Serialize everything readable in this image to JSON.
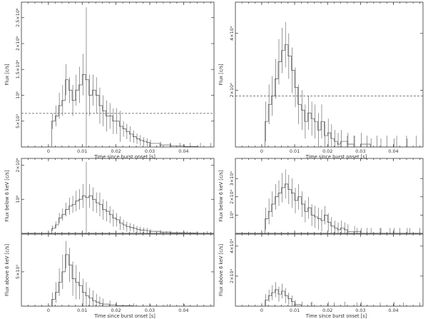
{
  "chart_data": [
    {
      "type": "line",
      "name": "top-left",
      "xlabel": "Time since burst onset [s]",
      "ylabel": "Flux [c/s]",
      "xticks": [
        "0",
        "0.01",
        "0.02",
        "0.03",
        "0.04"
      ],
      "xtick_values": [
        0,
        0.01,
        0.02,
        0.03,
        0.04
      ],
      "yticks": [
        "5×10⁵",
        "10⁶",
        "1.5×10⁶",
        "2×10⁶",
        "2.5×10⁶"
      ],
      "ytick_values": [
        500000,
        1000000,
        1500000,
        2000000,
        2500000
      ],
      "xlim": [
        -0.008,
        0.049
      ],
      "ylim": [
        0,
        2800000
      ],
      "dashed_level": 650000,
      "x": [
        -0.008,
        0,
        0.001,
        0.002,
        0.003,
        0.004,
        0.005,
        0.006,
        0.007,
        0.008,
        0.009,
        0.01,
        0.011,
        0.012,
        0.013,
        0.014,
        0.015,
        0.016,
        0.017,
        0.018,
        0.019,
        0.02,
        0.021,
        0.022,
        0.023,
        0.024,
        0.025,
        0.026,
        0.027,
        0.028,
        0.029,
        0.03,
        0.033,
        0.036,
        0.04,
        0.044,
        0.049
      ],
      "y": [
        0,
        0,
        500000,
        600000,
        800000,
        900000,
        1300000,
        1100000,
        900000,
        1100000,
        1200000,
        1400000,
        1300000,
        1000000,
        1100000,
        1000000,
        800000,
        700000,
        600000,
        600000,
        500000,
        500000,
        400000,
        350000,
        300000,
        250000,
        200000,
        160000,
        130000,
        110000,
        90000,
        70000,
        40000,
        20000,
        10000,
        0,
        0
      ],
      "err": [
        0,
        0,
        150000,
        200000,
        250000,
        300000,
        300000,
        250000,
        300000,
        300000,
        350000,
        400000,
        1400000,
        400000,
        300000,
        350000,
        350000,
        300000,
        300000,
        250000,
        250000,
        250000,
        300000,
        150000,
        150000,
        150000,
        120000,
        100000,
        100000,
        80000,
        80000,
        70000,
        60000,
        50000,
        40000,
        30000,
        0
      ],
      "err_x": [
        0.03,
        0.033,
        0.036,
        0.039,
        0.042,
        0.045,
        0.048
      ],
      "err_h": [
        80000,
        80000,
        80000,
        80000,
        80000,
        80000,
        80000
      ]
    },
    {
      "type": "line",
      "name": "top-right",
      "xlabel": "Time since burst onset [s]",
      "ylabel": "Flux [c/s]",
      "xticks": [
        "0",
        "0.01",
        "0.02",
        "0.03",
        "0.04"
      ],
      "xtick_values": [
        0,
        0.01,
        0.02,
        0.03,
        0.04
      ],
      "yticks": [
        "2×10⁴",
        "4×10⁴"
      ],
      "ytick_values": [
        20000,
        40000
      ],
      "xlim": [
        -0.008,
        0.049
      ],
      "ylim": [
        0,
        51000
      ],
      "dashed_level": 18000,
      "x": [
        -0.008,
        0,
        0.001,
        0.002,
        0.003,
        0.004,
        0.005,
        0.006,
        0.007,
        0.008,
        0.009,
        0.01,
        0.011,
        0.012,
        0.013,
        0.014,
        0.015,
        0.016,
        0.017,
        0.018,
        0.019,
        0.02,
        0.021,
        0.022,
        0.023,
        0.024,
        0.026,
        0.028,
        0.03,
        0.033,
        0.036,
        0.04,
        0.044,
        0.049
      ],
      "y": [
        0,
        0,
        9000,
        15000,
        18000,
        24000,
        30000,
        34000,
        36000,
        32000,
        27000,
        21000,
        15000,
        13000,
        9000,
        12000,
        10000,
        9000,
        6000,
        9000,
        4000,
        5000,
        3000,
        2000,
        1000,
        2000,
        1000,
        0,
        1000,
        0,
        0,
        0,
        0,
        0
      ],
      "err": [
        0,
        0,
        7000,
        7000,
        7000,
        7000,
        8000,
        8000,
        8000,
        8000,
        8000,
        7000,
        7000,
        7000,
        6000,
        6000,
        6000,
        6000,
        6000,
        6000,
        5000,
        5000,
        5000,
        4000,
        4000,
        4000,
        4000,
        4000,
        4000,
        3000,
        3000,
        3000,
        3000,
        0
      ],
      "err_x": [
        0.026,
        0.028,
        0.032,
        0.035,
        0.038,
        0.041,
        0.044,
        0.047,
        0.049
      ],
      "err_h": [
        4000,
        4000,
        4000,
        4000,
        4000,
        4000,
        4000,
        4000,
        4000
      ]
    },
    {
      "type": "line",
      "name": "left-below-6keV",
      "xlabel": "",
      "ylabel": "Flux below 6 keV [c/s]",
      "xticks": [],
      "xtick_values": [
        0,
        0.01,
        0.02,
        0.03,
        0.04
      ],
      "yticks": [
        "10⁶",
        "2×10⁶"
      ],
      "ytick_values": [
        1000000,
        2000000
      ],
      "xlim": [
        -0.008,
        0.049
      ],
      "ylim": [
        0,
        2200000
      ],
      "x": [
        -0.008,
        0,
        0.001,
        0.002,
        0.003,
        0.004,
        0.005,
        0.006,
        0.007,
        0.008,
        0.009,
        0.01,
        0.011,
        0.012,
        0.013,
        0.014,
        0.015,
        0.016,
        0.017,
        0.018,
        0.019,
        0.02,
        0.021,
        0.022,
        0.023,
        0.024,
        0.025,
        0.026,
        0.027,
        0.028,
        0.029,
        0.03,
        0.033,
        0.036,
        0.04,
        0.044,
        0.049
      ],
      "y": [
        0,
        0,
        150000,
        250000,
        450000,
        550000,
        700000,
        800000,
        850000,
        950000,
        1000000,
        1100000,
        1050000,
        1100000,
        1000000,
        900000,
        850000,
        700000,
        650000,
        550000,
        450000,
        400000,
        300000,
        250000,
        200000,
        180000,
        150000,
        120000,
        100000,
        90000,
        80000,
        60000,
        40000,
        20000,
        10000,
        0,
        0
      ],
      "err": [
        0,
        0,
        80000,
        100000,
        150000,
        180000,
        200000,
        250000,
        250000,
        300000,
        300000,
        350000,
        1050000,
        350000,
        350000,
        300000,
        350000,
        300000,
        300000,
        250000,
        250000,
        200000,
        200000,
        150000,
        150000,
        120000,
        120000,
        100000,
        100000,
        80000,
        80000,
        70000,
        60000,
        50000,
        40000,
        30000,
        0
      ],
      "err_x": [
        0.032,
        0.035,
        0.038,
        0.041,
        0.044,
        0.047
      ],
      "err_h": [
        60000,
        60000,
        60000,
        60000,
        60000,
        60000
      ]
    },
    {
      "type": "line",
      "name": "right-below-6keV",
      "xlabel": "",
      "ylabel": "Flux below 6 keV [c/s]",
      "xticks": [],
      "xtick_values": [
        0,
        0.01,
        0.02,
        0.03,
        0.04
      ],
      "yticks": [
        "10⁴",
        "2×10⁴",
        "3×10⁴"
      ],
      "ytick_values": [
        10000,
        20000,
        30000
      ],
      "xlim": [
        -0.008,
        0.049
      ],
      "ylim": [
        0,
        41000
      ],
      "x": [
        -0.008,
        0,
        0.001,
        0.002,
        0.003,
        0.004,
        0.005,
        0.006,
        0.007,
        0.008,
        0.009,
        0.01,
        0.011,
        0.012,
        0.013,
        0.014,
        0.015,
        0.016,
        0.017,
        0.018,
        0.019,
        0.02,
        0.021,
        0.022,
        0.023,
        0.024,
        0.025,
        0.026,
        0.028,
        0.03,
        0.033,
        0.036,
        0.04,
        0.044,
        0.049
      ],
      "y": [
        0,
        0,
        8000,
        12000,
        16000,
        20000,
        22000,
        25000,
        27000,
        24000,
        22000,
        18000,
        20000,
        16000,
        12000,
        14000,
        10000,
        9000,
        8000,
        7000,
        10000,
        6000,
        4000,
        3000,
        2000,
        3000,
        2000,
        1000,
        1000,
        0,
        0,
        0,
        0,
        0,
        0
      ],
      "err": [
        0,
        0,
        6000,
        7000,
        7000,
        7000,
        7000,
        8000,
        8000,
        8000,
        8000,
        7000,
        7000,
        7000,
        6000,
        6000,
        6000,
        6000,
        6000,
        6000,
        5000,
        5000,
        5000,
        4000,
        4000,
        4000,
        4000,
        4000,
        3000,
        3000,
        3000,
        3000,
        3000,
        3000,
        0
      ],
      "err_x": [
        0.029,
        0.032,
        0.036,
        0.039,
        0.042,
        0.045,
        0.048
      ],
      "err_h": [
        3000,
        3000,
        3000,
        3000,
        3000,
        3000,
        3000
      ]
    },
    {
      "type": "line",
      "name": "left-above-6keV",
      "xlabel": "Time since burst onset [s]",
      "ylabel": "Flux above 6 keV [c/s]",
      "xticks": [
        "0",
        "0.01",
        "0.02",
        "0.03",
        "0.04"
      ],
      "xtick_values": [
        0,
        0.01,
        0.02,
        0.03,
        0.04
      ],
      "yticks": [
        "5×10⁵"
      ],
      "ytick_values": [
        500000
      ],
      "xlim": [
        -0.008,
        0.049
      ],
      "ylim": [
        0,
        1050000
      ],
      "x": [
        -0.008,
        0,
        0.001,
        0.002,
        0.003,
        0.004,
        0.005,
        0.006,
        0.007,
        0.008,
        0.009,
        0.01,
        0.011,
        0.012,
        0.013,
        0.014,
        0.015,
        0.016,
        0.018,
        0.02,
        0.025,
        0.03,
        0.035,
        0.04,
        0.049
      ],
      "y": [
        0,
        0,
        100000,
        200000,
        350000,
        500000,
        750000,
        600000,
        400000,
        350000,
        300000,
        200000,
        150000,
        120000,
        80000,
        60000,
        40000,
        30000,
        20000,
        10000,
        0,
        0,
        0,
        0,
        0
      ],
      "err": [
        0,
        0,
        100000,
        150000,
        200000,
        250000,
        200000,
        250000,
        250000,
        250000,
        200000,
        200000,
        200000,
        150000,
        150000,
        120000,
        100000,
        80000,
        60000,
        50000,
        40000,
        30000,
        30000,
        30000,
        0
      ],
      "err_x": [
        0.024,
        0.028,
        0.032,
        0.036,
        0.04,
        0.044,
        0.048
      ],
      "err_h": [
        30000,
        30000,
        30000,
        30000,
        30000,
        30000,
        30000
      ]
    },
    {
      "type": "line",
      "name": "right-above-6keV",
      "xlabel": "Time since burst onset [s]",
      "ylabel": "Flux above 6 keV [c/s]",
      "xticks": [
        "0",
        "0.01",
        "0.02",
        "0.03",
        "0.04"
      ],
      "xtick_values": [
        0,
        0.01,
        0.02,
        0.03,
        0.04
      ],
      "yticks": [
        "2×10⁴",
        "4×10⁴"
      ],
      "ytick_values": [
        20000,
        40000
      ],
      "xlim": [
        -0.008,
        0.049
      ],
      "ylim": [
        0,
        48000
      ],
      "x": [
        -0.008,
        0,
        0.001,
        0.002,
        0.003,
        0.004,
        0.005,
        0.006,
        0.007,
        0.008,
        0.009,
        0.01,
        0.012,
        0.015,
        0.02,
        0.025,
        0.03,
        0.04,
        0.049
      ],
      "y": [
        0,
        0,
        4000,
        7000,
        9000,
        11000,
        8000,
        10000,
        7000,
        5000,
        3000,
        1000,
        0,
        0,
        0,
        0,
        0,
        0,
        0
      ],
      "err": [
        0,
        0,
        4000,
        4000,
        5000,
        5000,
        5000,
        5000,
        5000,
        4000,
        4000,
        3000,
        3000,
        3000,
        3000,
        3000,
        3000,
        3000,
        0
      ],
      "err_x": [
        0.015,
        0.022,
        0.029,
        0.036,
        0.043,
        0.048
      ],
      "err_h": [
        2500,
        2500,
        2500,
        2500,
        2500,
        2500
      ]
    }
  ]
}
